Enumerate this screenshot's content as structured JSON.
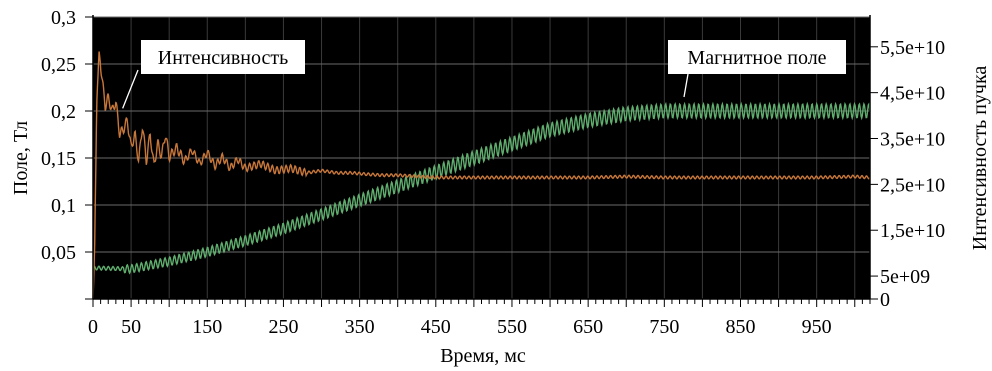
{
  "chart_data": {
    "type": "line",
    "xlabel": "Время, мс",
    "ylabel_left": "Поле, Тл",
    "ylabel_right": "Интенсивность пучка",
    "xlim": [
      0,
      1020
    ],
    "ylim_left": [
      0,
      0.3
    ],
    "ylim_right": [
      0,
      61500000000.0
    ],
    "x_ticks": [
      0,
      50,
      150,
      250,
      350,
      450,
      550,
      650,
      750,
      850,
      950
    ],
    "x_tick_labels": [
      "0",
      "50",
      "150",
      "250",
      "350",
      "450",
      "550",
      "650",
      "750",
      "850",
      "950"
    ],
    "y_left_ticks": [
      0.05,
      0.1,
      0.15,
      0.2,
      0.25,
      0.3
    ],
    "y_left_tick_labels": [
      "0,05",
      "0,1",
      "0,15",
      "0,2",
      "0,25",
      "0,3"
    ],
    "y_right_ticks": [
      0,
      5000000000.0,
      15000000000.0,
      25000000000.0,
      35000000000.0,
      45000000000.0,
      55000000000.0
    ],
    "y_right_tick_labels": [
      "0",
      "5e+09",
      "1,5e+10",
      "2,5e+10",
      "3,5e+10",
      "4,5e+10",
      "5,5e+10"
    ],
    "grid": true,
    "background_color": "#000000",
    "series": [
      {
        "name": "Интенсивность",
        "axis": "right",
        "color": "#c8773a",
        "x": [
          0,
          2,
          5,
          8,
          12,
          16,
          20,
          25,
          30,
          35,
          40,
          45,
          50,
          55,
          60,
          65,
          70,
          75,
          80,
          85,
          90,
          95,
          100,
          110,
          120,
          130,
          140,
          150,
          160,
          170,
          180,
          190,
          200,
          220,
          240,
          260,
          280,
          300,
          320,
          340,
          360,
          380,
          400,
          420,
          450,
          500,
          550,
          600,
          650,
          700,
          750,
          800,
          850,
          900,
          950,
          1000,
          1020
        ],
        "y": [
          0,
          10000000000.0,
          43000000000.0,
          54000000000.0,
          48000000000.0,
          42000000000.0,
          44000000000.0,
          41000000000.0,
          43000000000.0,
          36000000000.0,
          37000000000.0,
          39000000000.0,
          33000000000.0,
          36000000000.0,
          30000000000.0,
          38000000000.0,
          30000000000.0,
          36000000000.0,
          29000000000.0,
          34000000000.0,
          31000000000.0,
          36000000000.0,
          31000000000.0,
          33000000000.0,
          30000000000.0,
          32500000000.0,
          29500000000.0,
          32000000000.0,
          29000000000.0,
          31000000000.0,
          28500000000.0,
          30500000000.0,
          28500000000.0,
          29500000000.0,
          28000000000.0,
          28500000000.0,
          27500000000.0,
          28000000000.0,
          27500000000.0,
          27500000000.0,
          27200000000.0,
          27000000000.0,
          27000000000.0,
          26800000000.0,
          26500000000.0,
          26500000000.0,
          26500000000.0,
          26500000000.0,
          26500000000.0,
          26700000000.0,
          26500000000.0,
          26500000000.0,
          26500000000.0,
          26500000000.0,
          26500000000.0,
          26700000000.0,
          26500000000.0
        ]
      },
      {
        "name": "Магнитное поле",
        "axis": "left",
        "color": "#5fae6e",
        "x": [
          0,
          50,
          100,
          150,
          200,
          250,
          300,
          350,
          400,
          450,
          500,
          550,
          600,
          650,
          700,
          750,
          800,
          850,
          900,
          950,
          1000,
          1020
        ],
        "y": [
          0.033,
          0.032,
          0.04,
          0.05,
          0.062,
          0.075,
          0.09,
          0.105,
          0.12,
          0.135,
          0.15,
          0.165,
          0.18,
          0.19,
          0.197,
          0.2,
          0.2,
          0.2,
          0.2,
          0.2,
          0.2,
          0.2
        ]
      }
    ],
    "annotations": [
      {
        "text": "Интенсивность",
        "series": "Интенсивность",
        "x": 35,
        "y": 42000000000.0
      },
      {
        "text": "Магнитное поле",
        "series": "Магнитное поле",
        "x": 760,
        "y": 0.205
      }
    ]
  }
}
